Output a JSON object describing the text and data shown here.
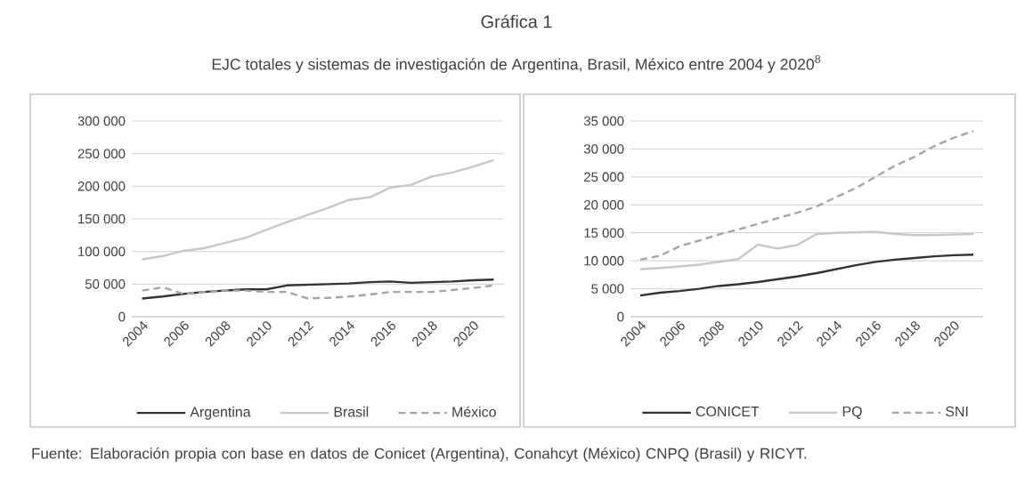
{
  "chart_data": [
    {
      "type": "line",
      "title": "Gráfica 1",
      "subtitle": "EJC totales y sistemas de investigación de Argentina, Brasil, México entre 2004 y 2020$^{8}$",
      "annotations": [
        "Fuente: Elaboración propia con base en datos de Conicet (Argentina), Conahcyt (México) CNPQ (Brasil) y RICYT."
      ],
      "x": [
        2004,
        2005,
        2006,
        2007,
        2008,
        2009,
        2010,
        2011,
        2012,
        2013,
        2014,
        2015,
        2016,
        2017,
        2018,
        2019,
        2020,
        2021
      ],
      "series": [
        {
          "name": "Argentina",
          "color": "#333333",
          "line_style": "solid",
          "values": [
            28000,
            31000,
            35000,
            38000,
            40000,
            42000,
            42000,
            48000,
            49000,
            50000,
            51000,
            53000,
            54000,
            52000,
            53000,
            54000,
            56000,
            57000
          ]
        },
        {
          "name": "Brasil",
          "color": "#c8c8c8",
          "line_style": "solid",
          "values": [
            88000,
            93000,
            101000,
            105000,
            113000,
            121000,
            133000,
            145000,
            156000,
            167000,
            179000,
            183000,
            198000,
            202000,
            215000,
            221000,
            230000,
            240000
          ]
        },
        {
          "name": "México",
          "color": "#a6a6a6",
          "line_style": "dashed",
          "values": [
            40000,
            45000,
            35000,
            38000,
            40000,
            40000,
            38000,
            38000,
            28000,
            29000,
            31000,
            34000,
            38000,
            38000,
            38000,
            41000,
            44000,
            48000
          ]
        }
      ],
      "xlim": [
        2003.5,
        2021.5
      ],
      "xticks": [
        2004,
        2006,
        2008,
        2010,
        2012,
        2014,
        2016,
        2018,
        2020
      ],
      "ylim": [
        0,
        300000
      ],
      "yticks": [
        {
          "value": 0,
          "label": "0"
        },
        {
          "value": 50000,
          "label": "50 000"
        },
        {
          "value": 100000,
          "label": "100 000"
        },
        {
          "value": 150000,
          "label": "150 000"
        },
        {
          "value": 200000,
          "label": "200 000"
        },
        {
          "value": 250000,
          "label": "250 000"
        },
        {
          "value": 300000,
          "label": "300 000"
        }
      ],
      "grid": "y",
      "legend": "bottom"
    },
    {
      "type": "line",
      "x": [
        2004,
        2005,
        2006,
        2007,
        2008,
        2009,
        2010,
        2011,
        2012,
        2013,
        2014,
        2015,
        2016,
        2017,
        2018,
        2019,
        2020,
        2021
      ],
      "series": [
        {
          "name": "CONICET",
          "color": "#333333",
          "line_style": "solid",
          "values": [
            3800,
            4300,
            4600,
            5000,
            5500,
            5800,
            6200,
            6700,
            7200,
            7800,
            8500,
            9200,
            9800,
            10200,
            10500,
            10800,
            11000,
            11100
          ]
        },
        {
          "name": "PQ",
          "color": "#c8c8c8",
          "line_style": "solid",
          "values": [
            8500,
            8700,
            9000,
            9300,
            9800,
            10300,
            12900,
            12200,
            12800,
            14800,
            15000,
            15100,
            15200,
            14800,
            14600,
            14600,
            14700,
            14800
          ]
        },
        {
          "name": "SNI",
          "color": "#a6a6a6",
          "line_style": "dashed",
          "values": [
            10200,
            10900,
            12600,
            13600,
            14700,
            15600,
            16600,
            17600,
            18600,
            19700,
            21400,
            23000,
            25000,
            27000,
            28600,
            30500,
            32000,
            33200
          ]
        }
      ],
      "xlim": [
        2003.5,
        2021.5
      ],
      "xticks": [
        2004,
        2006,
        2008,
        2010,
        2012,
        2014,
        2016,
        2018,
        2020
      ],
      "ylim": [
        0,
        35000
      ],
      "yticks": [
        {
          "value": 0,
          "label": "0"
        },
        {
          "value": 5000,
          "label": "5 000"
        },
        {
          "value": 10000,
          "label": "10 000"
        },
        {
          "value": 15000,
          "label": "15 000"
        },
        {
          "value": 20000,
          "label": "20 000"
        },
        {
          "value": 25000,
          "label": "25 000"
        },
        {
          "value": 30000,
          "label": "30 000"
        },
        {
          "value": 35000,
          "label": "35 000"
        }
      ],
      "grid": "y",
      "legend": "bottom"
    }
  ]
}
